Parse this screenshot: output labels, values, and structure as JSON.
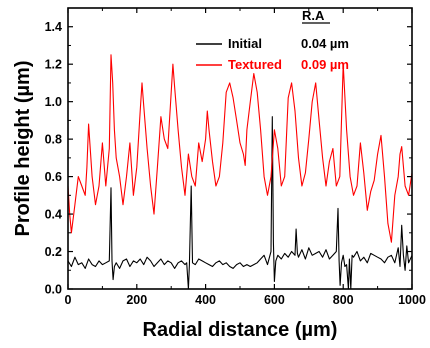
{
  "chart_data": {
    "type": "line",
    "xlabel": "Radial distance (µm)",
    "ylabel": "Profile height (µm)",
    "xlim": [
      0,
      1000
    ],
    "ylim": [
      0,
      1.5
    ],
    "x_ticks": [
      0,
      200,
      400,
      600,
      800,
      1000
    ],
    "x_tick_labels": [
      "0",
      "200",
      "400",
      "600",
      "800",
      "1000"
    ],
    "y_ticks": [
      0,
      0.2,
      0.4,
      0.6,
      0.8,
      1.0,
      1.2,
      1.4
    ],
    "y_tick_labels": [
      "0.0",
      "0.2",
      "0.4",
      "0.6",
      "0.8",
      "1.0",
      "1.2",
      "1.4"
    ],
    "grid": false,
    "legend": {
      "placement": "top-right",
      "header": "R.A",
      "entries": [
        {
          "label": "Initial",
          "value": "0.04 µm",
          "color": "#000000"
        },
        {
          "label": "Textured",
          "value": "0.09 µm",
          "color": "#ff0000"
        }
      ]
    },
    "series": [
      {
        "name": "Initial",
        "color": "#000000",
        "x": [
          0,
          10,
          20,
          30,
          40,
          50,
          60,
          70,
          80,
          90,
          100,
          110,
          120,
          125,
          128,
          131,
          135,
          140,
          150,
          160,
          170,
          180,
          190,
          200,
          210,
          220,
          230,
          240,
          250,
          260,
          270,
          280,
          290,
          300,
          310,
          320,
          330,
          340,
          345,
          350,
          353,
          358,
          362,
          370,
          380,
          390,
          400,
          410,
          420,
          430,
          440,
          450,
          460,
          470,
          480,
          490,
          500,
          510,
          520,
          530,
          540,
          550,
          560,
          570,
          580,
          590,
          594,
          597,
          600,
          604,
          610,
          620,
          630,
          640,
          650,
          660,
          663,
          667,
          670,
          680,
          690,
          700,
          710,
          720,
          730,
          740,
          750,
          760,
          770,
          780,
          785,
          788,
          791,
          795,
          800,
          805,
          810,
          815,
          818,
          822,
          826,
          830,
          840,
          850,
          860,
          870,
          880,
          890,
          900,
          910,
          920,
          930,
          940,
          950,
          960,
          965,
          970,
          975,
          980,
          985,
          990,
          1000
        ],
        "y": [
          0.15,
          0.12,
          0.17,
          0.13,
          0.14,
          0.11,
          0.16,
          0.13,
          0.12,
          0.15,
          0.13,
          0.14,
          0.15,
          0.54,
          0.15,
          0.05,
          0.12,
          0.14,
          0.11,
          0.15,
          0.16,
          0.12,
          0.15,
          0.14,
          0.16,
          0.13,
          0.17,
          0.15,
          0.12,
          0.14,
          0.16,
          0.13,
          0.15,
          0.14,
          0.11,
          0.14,
          0.15,
          0.13,
          0.14,
          0.0,
          0.13,
          0.55,
          0.14,
          0.13,
          0.16,
          0.15,
          0.14,
          0.13,
          0.12,
          0.14,
          0.15,
          0.13,
          0.14,
          0.12,
          0.11,
          0.13,
          0.14,
          0.12,
          0.13,
          0.12,
          0.13,
          0.14,
          0.16,
          0.18,
          0.13,
          0.2,
          0.92,
          0.25,
          0.04,
          0.15,
          0.18,
          0.16,
          0.19,
          0.17,
          0.2,
          0.18,
          0.32,
          0.19,
          0.17,
          0.21,
          0.16,
          0.22,
          0.18,
          0.19,
          0.2,
          0.17,
          0.21,
          0.16,
          0.18,
          0.2,
          0.43,
          0.15,
          0.02,
          0.14,
          0.18,
          0.12,
          0.13,
          0.0,
          0.16,
          0.0,
          0.18,
          0.17,
          0.2,
          0.15,
          0.17,
          0.14,
          0.19,
          0.18,
          0.17,
          0.16,
          0.14,
          0.17,
          0.18,
          0.14,
          0.22,
          0.12,
          0.34,
          0.18,
          0.1,
          0.23,
          0.14,
          0.18
        ]
      },
      {
        "name": "Textured",
        "color": "#ff0000",
        "x": [
          0,
          5,
          10,
          20,
          30,
          40,
          50,
          55,
          60,
          70,
          80,
          90,
          100,
          110,
          120,
          125,
          130,
          135,
          140,
          150,
          160,
          170,
          180,
          190,
          200,
          210,
          215,
          220,
          230,
          240,
          250,
          260,
          270,
          280,
          290,
          300,
          305,
          310,
          320,
          330,
          340,
          350,
          360,
          370,
          380,
          390,
          400,
          405,
          410,
          420,
          430,
          440,
          450,
          460,
          470,
          480,
          490,
          500,
          510,
          515,
          520,
          530,
          540,
          550,
          560,
          570,
          580,
          590,
          600,
          610,
          620,
          630,
          640,
          650,
          660,
          670,
          680,
          690,
          700,
          710,
          720,
          730,
          740,
          750,
          760,
          770,
          780,
          790,
          800,
          810,
          820,
          830,
          840,
          850,
          860,
          870,
          880,
          890,
          900,
          910,
          920,
          930,
          940,
          950,
          960,
          965,
          970,
          980,
          990,
          1000
        ],
        "y": [
          0.55,
          0.4,
          0.3,
          0.45,
          0.6,
          0.55,
          0.5,
          0.65,
          0.88,
          0.6,
          0.45,
          0.55,
          0.78,
          0.55,
          0.75,
          1.25,
          1.1,
          0.85,
          0.7,
          0.6,
          0.45,
          0.6,
          0.78,
          0.5,
          0.65,
          0.95,
          1.1,
          0.98,
          0.75,
          0.55,
          0.4,
          0.65,
          0.92,
          0.8,
          0.75,
          1.05,
          1.2,
          1.08,
          0.85,
          0.65,
          0.5,
          0.72,
          0.6,
          0.55,
          0.78,
          0.68,
          0.8,
          0.95,
          0.85,
          0.68,
          0.55,
          0.6,
          0.78,
          1.05,
          1.1,
          1.02,
          0.9,
          0.78,
          0.72,
          0.66,
          0.85,
          1.0,
          1.15,
          1.05,
          0.85,
          0.6,
          0.5,
          0.6,
          0.85,
          0.75,
          0.55,
          0.6,
          1.02,
          1.1,
          0.95,
          0.7,
          0.55,
          0.62,
          0.8,
          1.0,
          1.1,
          0.9,
          0.7,
          0.55,
          0.68,
          0.75,
          0.55,
          0.6,
          1.2,
          0.85,
          0.6,
          0.5,
          0.55,
          0.78,
          0.62,
          0.42,
          0.52,
          0.58,
          0.72,
          0.82,
          0.6,
          0.35,
          0.25,
          0.5,
          0.6,
          0.72,
          0.76,
          0.55,
          0.5,
          0.62
        ]
      }
    ]
  }
}
